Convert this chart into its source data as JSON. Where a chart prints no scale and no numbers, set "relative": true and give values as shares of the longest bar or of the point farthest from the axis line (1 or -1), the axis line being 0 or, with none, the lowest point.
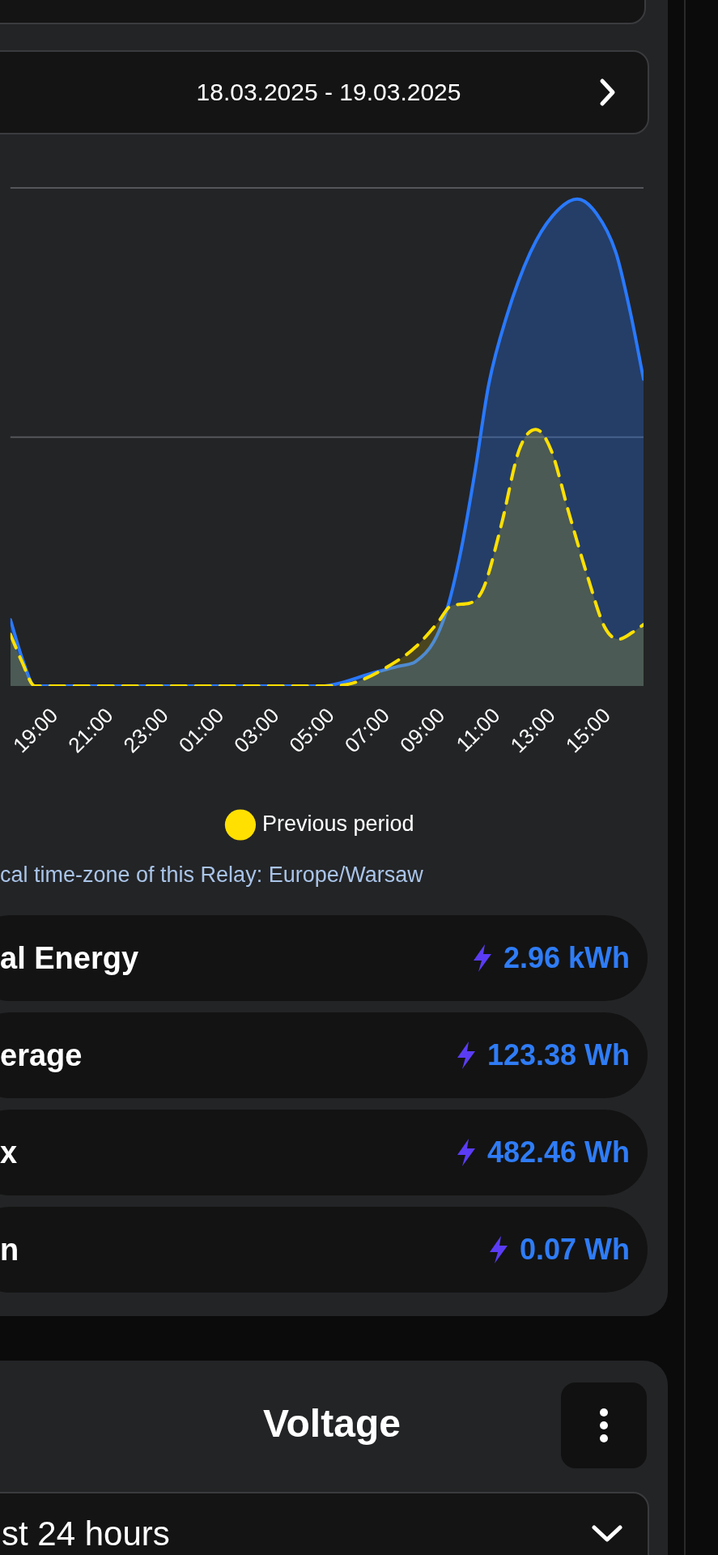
{
  "chart_data": {
    "type": "area",
    "subtitle": "18.03.2025 - 19.03.2025",
    "relative": true,
    "xlim": [
      "2025-03-18T17:23",
      "2025-03-19T16:18"
    ],
    "xticks": [
      {
        "value": "2025-03-18T19:00",
        "label": "19:00"
      },
      {
        "value": "2025-03-18T21:00",
        "label": "21:00"
      },
      {
        "value": "2025-03-18T23:00",
        "label": "23:00"
      },
      {
        "value": "2025-03-19T01:00",
        "label": "01:00"
      },
      {
        "value": "2025-03-19T03:00",
        "label": "03:00"
      },
      {
        "value": "2025-03-19T05:00",
        "label": "05:00"
      },
      {
        "value": "2025-03-19T07:00",
        "label": "07:00"
      },
      {
        "value": "2025-03-19T09:00",
        "label": "09:00"
      },
      {
        "value": "2025-03-19T11:00",
        "label": "11:00"
      },
      {
        "value": "2025-03-19T13:00",
        "label": "13:00"
      },
      {
        "value": "2025-03-19T15:00",
        "label": "15:00"
      }
    ],
    "series": [
      {
        "color": "#2979ff",
        "line_style": "solid",
        "x": [
          "2025-03-18T17:23",
          "2025-03-18T17:51",
          "2025-03-18T18:16",
          "2025-03-19T04:45",
          "2025-03-19T05:15",
          "2025-03-19T06:24",
          "2025-03-19T07:24",
          "2025-03-19T08:03",
          "2025-03-19T08:42",
          "2025-03-19T09:12",
          "2025-03-19T09:42",
          "2025-03-19T10:12",
          "2025-03-19T10:42",
          "2025-03-19T11:21",
          "2025-03-19T12:12",
          "2025-03-19T13:00",
          "2025-03-19T13:54",
          "2025-03-19T14:36",
          "2025-03-19T15:18",
          "2025-03-19T15:51",
          "2025-03-19T16:18"
        ],
        "values": [
          0.136,
          0.05,
          0,
          0,
          0.005,
          0.025,
          0.04,
          0.05,
          0.09,
          0.16,
          0.28,
          0.44,
          0.62,
          0.76,
          0.89,
          0.965,
          1,
          0.97,
          0.89,
          0.76,
          0.63
        ]
      },
      {
        "name": "Previous period",
        "color": "#ffe000",
        "line_style": "dashed",
        "x": [
          "2025-03-18T17:23",
          "2025-03-18T17:48",
          "2025-03-18T18:16",
          "2025-03-19T04:45",
          "2025-03-19T05:44",
          "2025-03-19T07:12",
          "2025-03-19T08:03",
          "2025-03-19T08:51",
          "2025-03-19T09:21",
          "2025-03-19T10:00",
          "2025-03-19T10:30",
          "2025-03-19T11:09",
          "2025-03-19T11:48",
          "2025-03-19T12:24",
          "2025-03-19T12:57",
          "2025-03-19T13:36",
          "2025-03-19T14:18",
          "2025-03-19T14:54",
          "2025-03-19T15:24",
          "2025-03-19T15:54",
          "2025-03-19T16:18"
        ],
        "values": [
          0.106,
          0.05,
          0,
          0,
          0.005,
          0.045,
          0.08,
          0.13,
          0.165,
          0.17,
          0.2,
          0.33,
          0.485,
          0.527,
          0.485,
          0.355,
          0.22,
          0.12,
          0.096,
          0.11,
          0.126
        ]
      }
    ],
    "ref_lines": [
      {
        "axis": "y",
        "value": 0.511,
        "color": "#55565a"
      },
      {
        "axis": "y",
        "value": 1.023,
        "color": "#55565a"
      }
    ],
    "legend": "bottom",
    "marker": "none",
    "annotations": [
      "cal time-zone of this Relay: Europe/Warsaw",
      "al Energy",
      "2.96 kWh",
      "erage",
      "123.38 Wh",
      "x",
      "482.46 Wh",
      "n",
      "0.07 Wh",
      "Voltage",
      "st 24 hours"
    ]
  }
}
